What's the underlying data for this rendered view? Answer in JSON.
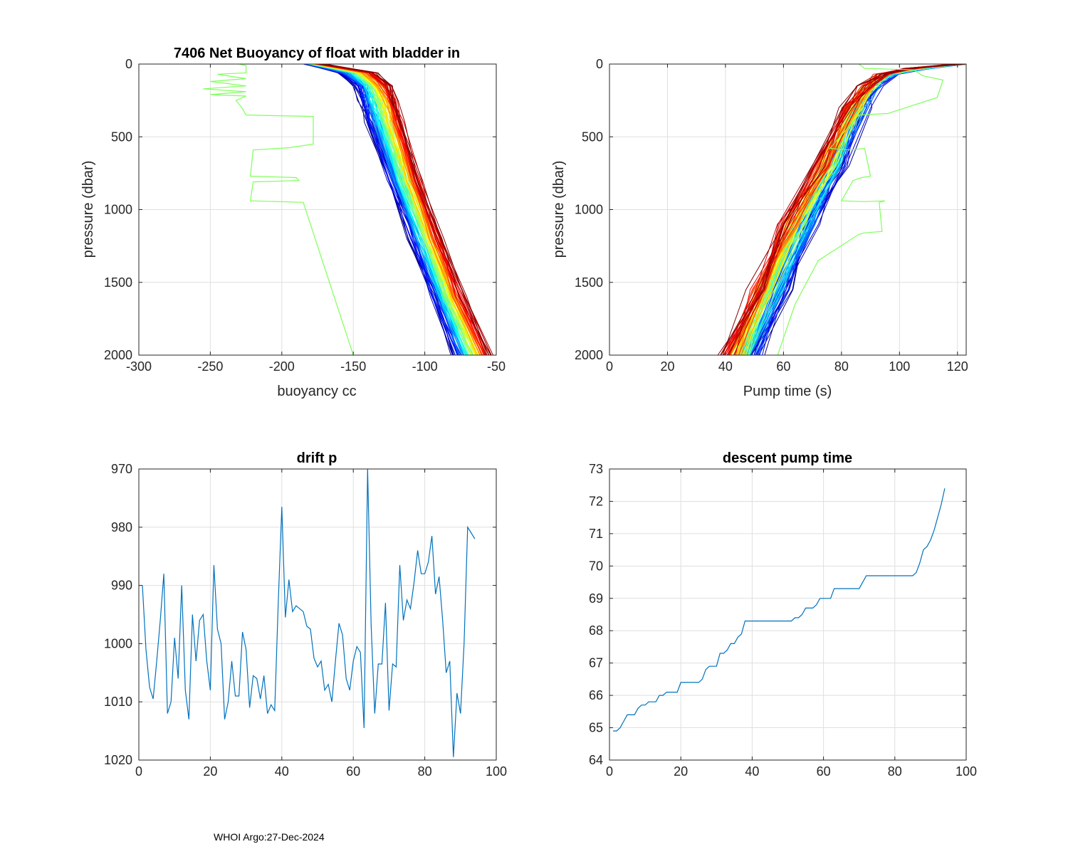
{
  "footer": "WHOI Argo:27-Dec-2024",
  "chart_data": [
    {
      "id": "buoyancy",
      "type": "line",
      "title": "7406 Net Buoyancy of float with bladder in",
      "xlabel": "buoyancy cc",
      "ylabel": "pressure (dbar)",
      "xlim": [
        -300,
        -50
      ],
      "ylim": [
        0,
        2000
      ],
      "y_reversed": true,
      "xticks": [
        -300,
        -250,
        -200,
        -150,
        -100,
        -50
      ],
      "yticks": [
        0,
        500,
        1000,
        1500,
        2000
      ],
      "series_colormap": "jet (blue = early profiles, red = late profiles)",
      "profile_count": 94,
      "bundle": {
        "early_profile": {
          "x": [
            -183,
            -160,
            -148,
            -145,
            -140,
            -125,
            -110,
            -95,
            -80
          ],
          "y": [
            0,
            60,
            150,
            250,
            400,
            800,
            1200,
            1600,
            2000
          ]
        },
        "late_profile": {
          "x": [
            -172,
            -135,
            -125,
            -120,
            -115,
            -103,
            -88,
            -73,
            -53
          ],
          "y": [
            0,
            60,
            150,
            250,
            400,
            800,
            1200,
            1600,
            2000
          ]
        }
      },
      "outlier": {
        "x": [
          -230,
          -225,
          -225,
          -245,
          -225,
          -250,
          -225,
          -255,
          -225,
          -250,
          -225,
          -232,
          -228,
          -225,
          -178,
          -178,
          -195,
          -220,
          -222,
          -190,
          -188,
          -220,
          -222,
          -185,
          -180,
          -170,
          -160,
          -150
        ],
        "y": [
          0,
          10,
          60,
          70,
          100,
          120,
          150,
          170,
          190,
          210,
          220,
          250,
          300,
          350,
          360,
          550,
          575,
          590,
          770,
          780,
          800,
          810,
          940,
          950,
          1100,
          1400,
          1700,
          2000
        ]
      }
    },
    {
      "id": "pumptime",
      "type": "line",
      "title": "",
      "xlabel": "Pump time (s)",
      "ylabel": "pressure (dbar)",
      "xlim": [
        0,
        123
      ],
      "ylim": [
        0,
        2000
      ],
      "y_reversed": true,
      "xticks": [
        0,
        20,
        40,
        60,
        80,
        100,
        120
      ],
      "yticks": [
        0,
        500,
        1000,
        1500,
        2000
      ],
      "series_colormap": "jet (blue = early profiles, red = late profiles)",
      "profile_count": 94,
      "bundle": {
        "early_profile": {
          "x": [
            122,
            110,
            98,
            92,
            88,
            80,
            70,
            61,
            51
          ],
          "y": [
            0,
            30,
            70,
            150,
            300,
            700,
            1100,
            1550,
            2000
          ]
        },
        "late_profile": {
          "x": [
            120,
            103,
            93,
            88,
            82,
            72,
            60,
            50,
            40
          ],
          "y": [
            0,
            30,
            70,
            150,
            300,
            700,
            1100,
            1550,
            2000
          ]
        }
      },
      "outlier": {
        "x": [
          86,
          88,
          105,
          108,
          115,
          113,
          96,
          86,
          76,
          83,
          88,
          90,
          87,
          84,
          80,
          88,
          95,
          93,
          94,
          88,
          86,
          72,
          64,
          58
        ],
        "y": [
          0,
          30,
          40,
          80,
          110,
          230,
          340,
          350,
          580,
          590,
          580,
          770,
          780,
          800,
          940,
          945,
          940,
          950,
          1150,
          1160,
          1170,
          1350,
          1650,
          2000
        ]
      }
    },
    {
      "id": "driftp",
      "type": "line",
      "title": "drift p",
      "xlabel": "",
      "ylabel": "",
      "xlim": [
        0,
        100
      ],
      "ylim": [
        970,
        1020
      ],
      "y_reversed": true,
      "xticks": [
        0,
        20,
        40,
        60,
        80,
        100
      ],
      "yticks": [
        970,
        980,
        990,
        1000,
        1010,
        1020
      ],
      "color": "#0072BD",
      "x": [
        1,
        2,
        3,
        4,
        5,
        6,
        7,
        8,
        9,
        10,
        11,
        12,
        13,
        14,
        15,
        16,
        17,
        18,
        19,
        20,
        21,
        22,
        23,
        24,
        25,
        26,
        27,
        28,
        29,
        30,
        31,
        32,
        33,
        34,
        35,
        36,
        37,
        38,
        39,
        40,
        41,
        42,
        43,
        44,
        45,
        46,
        47,
        48,
        49,
        50,
        51,
        52,
        53,
        54,
        55,
        56,
        57,
        58,
        59,
        60,
        61,
        62,
        63,
        64,
        65,
        66,
        67,
        68,
        69,
        70,
        71,
        72,
        73,
        74,
        75,
        76,
        77,
        78,
        79,
        80,
        81,
        82,
        83,
        84,
        85,
        86,
        87,
        88,
        89,
        90,
        91,
        92,
        93,
        94
      ],
      "values": [
        990,
        1001,
        1007.5,
        1009.5,
        1003,
        996,
        988,
        1012,
        1010,
        999,
        1006,
        990,
        1008,
        1013,
        995,
        1003,
        996,
        995,
        1003,
        1008,
        986.5,
        997.5,
        1000,
        1013,
        1010,
        1003,
        1009,
        1009,
        998,
        1001,
        1011,
        1005.5,
        1006,
        1009.5,
        1005.5,
        1012,
        1010.5,
        1011.5,
        993,
        976.5,
        995.5,
        989,
        994.5,
        993.5,
        994,
        994.5,
        997,
        997.5,
        1002.5,
        1004,
        1003,
        1008,
        1007,
        1010,
        1003,
        996.5,
        998.5,
        1006,
        1008,
        1003,
        1000.5,
        1001.5,
        1014.5,
        970,
        997,
        1012,
        1003.5,
        1003.5,
        993,
        1011.5,
        1003.5,
        1004,
        986.5,
        996,
        992.5,
        994,
        989.5,
        984,
        988,
        988,
        986,
        981.5,
        991.5,
        988.5,
        996,
        1005,
        1003,
        1019.5,
        1008.5,
        1012,
        1000,
        980,
        981,
        982
      ]
    },
    {
      "id": "descentpump",
      "type": "line",
      "title": "descent pump time",
      "xlabel": "",
      "ylabel": "",
      "xlim": [
        0,
        100
      ],
      "ylim": [
        64,
        73
      ],
      "y_reversed": false,
      "xticks": [
        0,
        20,
        40,
        60,
        80,
        100
      ],
      "yticks": [
        64,
        65,
        66,
        67,
        68,
        69,
        70,
        71,
        72,
        73
      ],
      "color": "#0072BD",
      "x": [
        1,
        2,
        3,
        4,
        5,
        6,
        7,
        8,
        9,
        10,
        11,
        12,
        13,
        14,
        15,
        16,
        17,
        18,
        19,
        20,
        21,
        22,
        23,
        24,
        25,
        26,
        27,
        28,
        29,
        30,
        31,
        32,
        33,
        34,
        35,
        36,
        37,
        38,
        39,
        40,
        41,
        42,
        43,
        44,
        45,
        46,
        47,
        48,
        49,
        50,
        51,
        52,
        53,
        54,
        55,
        56,
        57,
        58,
        59,
        60,
        61,
        62,
        63,
        64,
        65,
        66,
        67,
        68,
        69,
        70,
        71,
        72,
        73,
        74,
        75,
        76,
        77,
        78,
        79,
        80,
        81,
        82,
        83,
        84,
        85,
        86,
        87,
        88,
        89,
        90,
        91,
        92,
        93,
        94
      ],
      "values": [
        64.9,
        64.9,
        65.0,
        65.2,
        65.4,
        65.4,
        65.4,
        65.6,
        65.7,
        65.7,
        65.8,
        65.8,
        65.8,
        66.0,
        66.0,
        66.1,
        66.1,
        66.1,
        66.1,
        66.4,
        66.4,
        66.4,
        66.4,
        66.4,
        66.4,
        66.5,
        66.8,
        66.9,
        66.9,
        66.9,
        67.3,
        67.3,
        67.4,
        67.6,
        67.6,
        67.8,
        67.9,
        68.3,
        68.3,
        68.3,
        68.3,
        68.3,
        68.3,
        68.3,
        68.3,
        68.3,
        68.3,
        68.3,
        68.3,
        68.3,
        68.3,
        68.4,
        68.4,
        68.5,
        68.7,
        68.7,
        68.7,
        68.8,
        69.0,
        69.0,
        69.0,
        69.0,
        69.3,
        69.3,
        69.3,
        69.3,
        69.3,
        69.3,
        69.3,
        69.3,
        69.5,
        69.7,
        69.7,
        69.7,
        69.7,
        69.7,
        69.7,
        69.7,
        69.7,
        69.7,
        69.7,
        69.7,
        69.7,
        69.7,
        69.7,
        69.8,
        70.1,
        70.5,
        70.6,
        70.8,
        71.1,
        71.5,
        71.9,
        72.4
      ]
    }
  ]
}
